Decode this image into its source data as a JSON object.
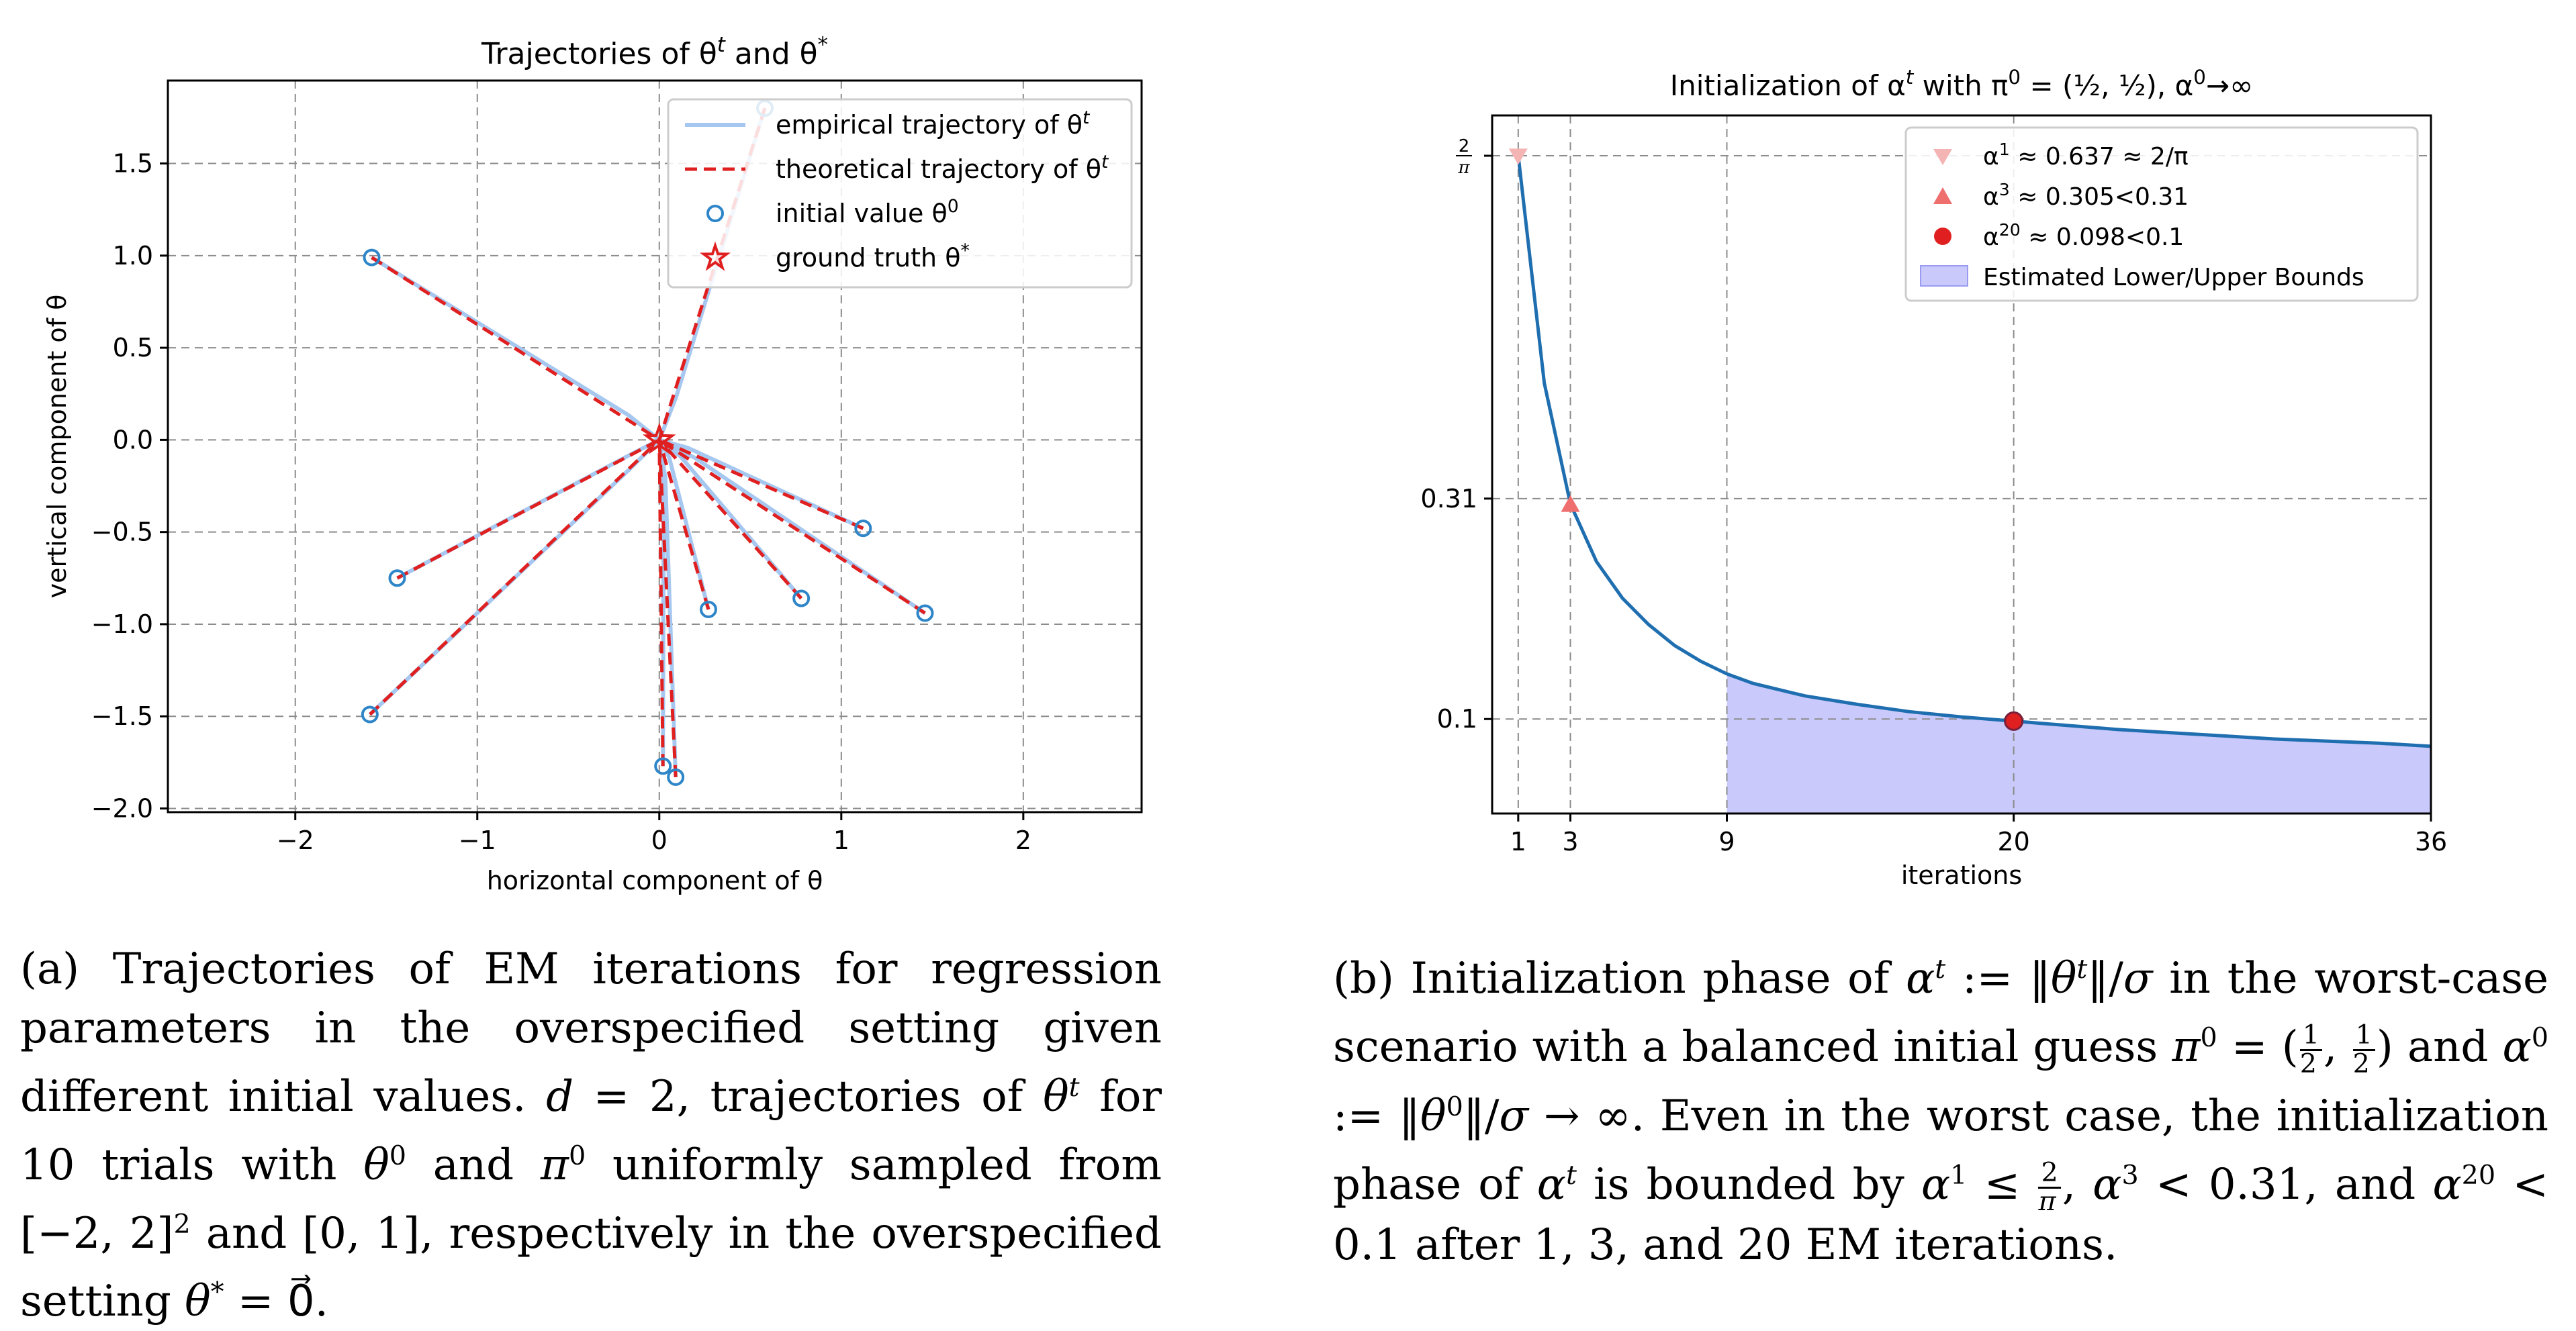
{
  "chart_data": [
    {
      "type": "line",
      "title": "Trajectories of θ^t and θ^*",
      "xlabel": "horizontal component of θ",
      "ylabel": "vertical component of θ",
      "xlim": [
        -2.7,
        2.65
      ],
      "ylim": [
        -2.02,
        1.95
      ],
      "xticks": [
        -2,
        -1,
        0,
        1,
        2
      ],
      "xtick_labels": [
        "−2",
        "−1",
        "0",
        "1",
        "2"
      ],
      "yticks": [
        1.5,
        1.0,
        0.5,
        0.0,
        -0.5,
        -1.0,
        -1.5,
        -2.0
      ],
      "ytick_labels": [
        "1.5",
        "1.0",
        "0.5",
        "0.0",
        "−0.5",
        "−1.0",
        "−1.5",
        "−2.0"
      ],
      "grid": true,
      "legend": {
        "position": "top-right",
        "entries": [
          {
            "label": "empirical trajectory of θ",
            "sup": "t",
            "style": "light-blue-line"
          },
          {
            "label": "theoretical trajectory of θ",
            "sup": "t",
            "style": "red-dashed-line"
          },
          {
            "label": "initial value θ",
            "sup": "0",
            "style": "blue-circle"
          },
          {
            "label": "ground truth θ",
            "sup": "*",
            "style": "red-star"
          }
        ]
      },
      "ground_truth": {
        "x": 0,
        "y": 0
      },
      "initial_values": [
        {
          "x": -1.58,
          "y": 0.99
        },
        {
          "x": 0.58,
          "y": 1.8
        },
        {
          "x": 1.12,
          "y": -0.48
        },
        {
          "x": -1.44,
          "y": -0.75
        },
        {
          "x": 0.27,
          "y": -0.92
        },
        {
          "x": 0.78,
          "y": -0.86
        },
        {
          "x": 1.46,
          "y": -0.94
        },
        {
          "x": -1.59,
          "y": -1.49
        },
        {
          "x": 0.02,
          "y": -1.77
        },
        {
          "x": 0.09,
          "y": -1.83
        }
      ],
      "colors": {
        "empirical": "#a6c8f0",
        "theoretical": "#e02020",
        "initial": "#2e86c9",
        "truth": "#e02020",
        "grid": "#8c8c8c"
      }
    },
    {
      "type": "line",
      "title": "Initialization of α^t with π^0 = (1/2, 1/2), α^0→∞",
      "xlabel": "iterations",
      "ylabel": "",
      "xlim": [
        0,
        36
      ],
      "ylim": [
        0.01,
        0.675
      ],
      "xticks": [
        1,
        3,
        9,
        20,
        36
      ],
      "xtick_labels": [
        "1",
        "3",
        "9",
        "20",
        "36"
      ],
      "yticks": [
        0.6366,
        0.31,
        0.1
      ],
      "ytick_labels": [
        "2/π",
        "0.31",
        "0.1"
      ],
      "grid": true,
      "series": [
        {
          "name": "alpha_t",
          "x": [
            1,
            2,
            3,
            4,
            5,
            6,
            7,
            8,
            9,
            10,
            12,
            14,
            16,
            18,
            20,
            22,
            24,
            26,
            28,
            30,
            32,
            34,
            36
          ],
          "values": [
            0.637,
            0.42,
            0.305,
            0.25,
            0.215,
            0.19,
            0.17,
            0.155,
            0.143,
            0.134,
            0.122,
            0.114,
            0.107,
            0.102,
            0.098,
            0.094,
            0.09,
            0.087,
            0.084,
            0.081,
            0.079,
            0.077,
            0.074
          ]
        }
      ],
      "markers": [
        {
          "label": "α",
          "sup": "1",
          "text": " ≈ 0.637 ≈ 2/π",
          "x": 1,
          "y": 0.637,
          "shape": "triangle-down",
          "color": "#f4b4b4"
        },
        {
          "label": "α",
          "sup": "3",
          "text": " ≈ 0.305<0.31",
          "x": 3,
          "y": 0.305,
          "shape": "triangle-up",
          "color": "#ef6f6f"
        },
        {
          "label": "α",
          "sup": "20",
          "text": " ≈ 0.098<0.1",
          "x": 20,
          "y": 0.098,
          "shape": "circle",
          "color": "#e02020"
        }
      ],
      "band": {
        "label": "Estimated Lower/Upper Bounds",
        "x_from": 9,
        "x_to": 36,
        "color": "#c9c9fb"
      },
      "legend": {
        "position": "top-right"
      },
      "line_color": "#1f6fb0"
    }
  ],
  "captions": {
    "a": {
      "p1": "(a) Trajectories of EM iterations for regression parameters in the overspecified setting given different initial values. ",
      "p2": "d",
      "p3": " = 2, trajectories of ",
      "p4": "θ",
      "p4sup": "t",
      "p5": " for 10 trials with ",
      "p6": "θ",
      "p6sup": "0",
      "p7": " and ",
      "p8": "π",
      "p8sup": "0",
      "p9": " uniformly sampled from [−2, 2]",
      "p9sup": "2",
      "p10": " and [0, 1], respectively in the overspecified setting ",
      "p11": "θ",
      "p11sup": "*",
      "p12": " = 0⃗."
    },
    "b": {
      "p1": "(b) Initialization phase of ",
      "p2": "α",
      "p2sup": "t",
      "p3": " := ‖",
      "p4": "θ",
      "p4sup": "t",
      "p5": "‖/",
      "p6": "σ",
      "p7": " in the worst-case scenario with a balanced initial guess ",
      "p8": "π",
      "p8sup": "0",
      "p9": " = (",
      "f1n": "1",
      "f1d": "2",
      "p10": ", ",
      "f2n": "1",
      "f2d": "2",
      "p11": ") and ",
      "p12": "α",
      "p12sup": "0",
      "p13": " := ‖",
      "p14": "θ",
      "p14sup": "0",
      "p15": "‖/",
      "p16": "σ",
      "p17": " → ∞. Even in the worst case, the initialization phase of ",
      "p18": "α",
      "p18sup": "t",
      "p19": " is bounded by ",
      "p20": "α",
      "p20sup": "1",
      "p21": " ≤ ",
      "f3n": "2",
      "f3d": "π",
      "p22": ", ",
      "p23": "α",
      "p23sup": "3",
      "p24": " < 0.31, and ",
      "p25": "α",
      "p25sup": "20",
      "p26": " < 0.1 after 1, 3, and 20 EM iterations."
    }
  }
}
